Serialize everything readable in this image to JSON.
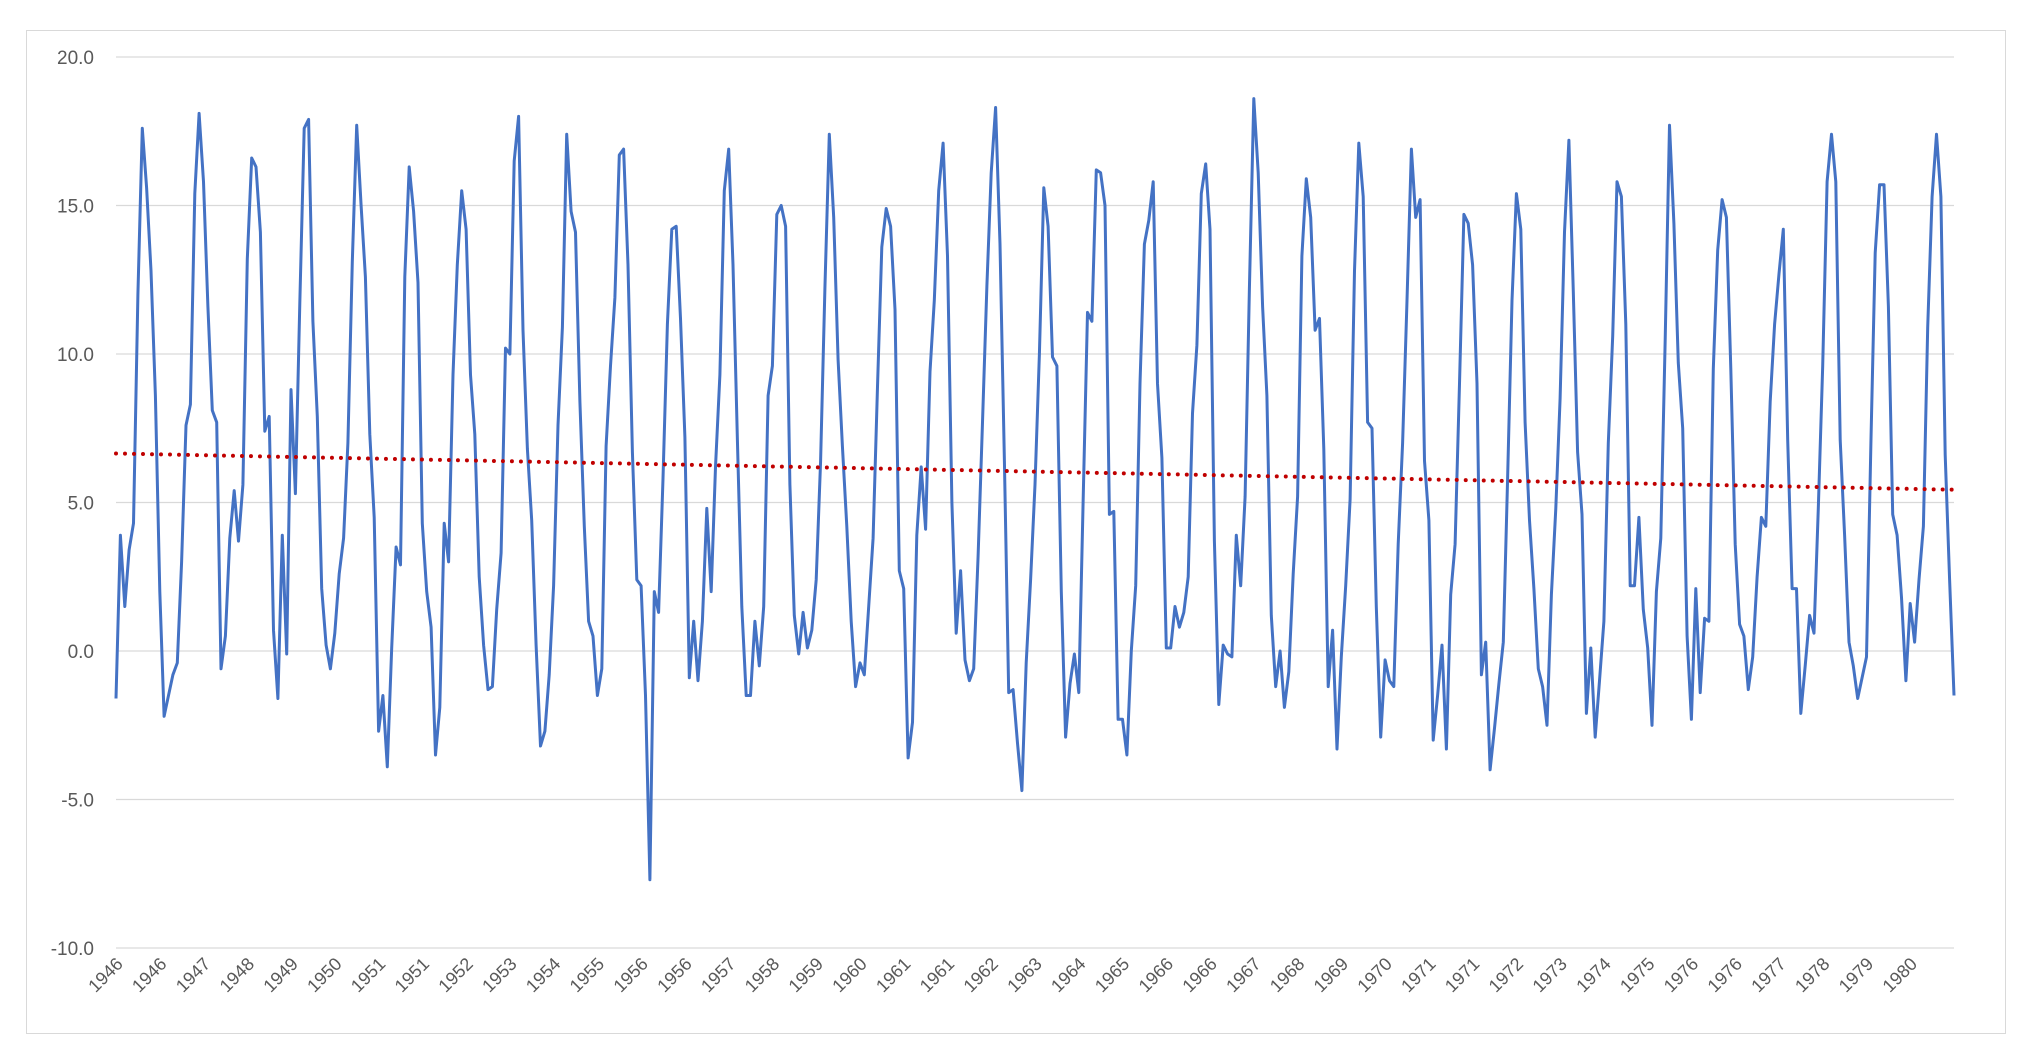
{
  "chart_data": {
    "type": "line",
    "title": "",
    "xlabel": "",
    "ylabel": "",
    "ylim": [
      -10,
      20
    ],
    "yticks": [
      "20.0",
      "15.0",
      "10.0",
      "5.0",
      "0.0",
      "-5.0",
      "-10.0"
    ],
    "xtick_labels": [
      "1946",
      "1946",
      "1947",
      "1948",
      "1949",
      "1950",
      "1951",
      "1951",
      "1952",
      "1953",
      "1954",
      "1955",
      "1956",
      "1956",
      "1957",
      "1958",
      "1959",
      "1960",
      "1961",
      "1961",
      "1962",
      "1963",
      "1964",
      "1965",
      "1966",
      "1966",
      "1967",
      "1968",
      "1969",
      "1970",
      "1971",
      "1971",
      "1972",
      "1973",
      "1974",
      "1975",
      "1976",
      "1976",
      "1977",
      "1978",
      "1979",
      "1980"
    ],
    "grid": "horizontal",
    "legend": "none",
    "series": [
      {
        "color": "#4472C4",
        "style": "solid",
        "values": [
          -1.6,
          3.9,
          1.5,
          3.4,
          4.3,
          12.0,
          17.6,
          15.6,
          12.8,
          8.6,
          2.0,
          -2.2,
          -1.5,
          -0.8,
          -0.4,
          3.0,
          7.6,
          8.3,
          15.4,
          18.1,
          15.8,
          11.6,
          8.1,
          7.7,
          -0.6,
          0.5,
          3.8,
          5.4,
          3.7,
          5.6,
          13.2,
          16.6,
          16.3,
          14.1,
          7.4,
          7.9,
          0.7,
          -1.6,
          3.9,
          -0.1,
          8.8,
          5.3,
          11.7,
          17.6,
          17.9,
          11.1,
          7.9,
          2.1,
          0.2,
          -0.6,
          0.6,
          2.6,
          3.8,
          7.0,
          13.1,
          17.7,
          15.0,
          12.6,
          7.3,
          4.5,
          -2.7,
          -1.5,
          -3.9,
          0.1,
          3.5,
          2.9,
          12.6,
          16.3,
          14.8,
          12.4,
          4.3,
          2.0,
          0.8,
          -3.5,
          -1.9,
          4.3,
          3.0,
          9.3,
          13.0,
          15.5,
          14.2,
          9.3,
          7.3,
          2.5,
          0.2,
          -1.3,
          -1.2,
          1.4,
          3.3,
          10.2,
          10.0,
          16.5,
          18.0,
          10.8,
          6.8,
          4.4,
          0.2,
          -3.2,
          -2.7,
          -0.8,
          2.2,
          7.6,
          10.9,
          17.4,
          14.8,
          14.1,
          8.4,
          4.2,
          1.0,
          0.5,
          -1.5,
          -0.6,
          6.9,
          9.6,
          11.9,
          16.7,
          16.9,
          13.0,
          6.7,
          2.4,
          2.2,
          -1.5,
          -7.7,
          2.0,
          1.3,
          5.8,
          11.0,
          14.2,
          14.3,
          11.2,
          7.2,
          -0.9,
          1.0,
          -1.0,
          1.0,
          4.8,
          2.0,
          6.2,
          9.3,
          15.5,
          16.9,
          13.0,
          7.1,
          1.5,
          -1.5,
          -1.5,
          1.0,
          -0.5,
          1.5,
          8.6,
          9.6,
          14.7,
          15.0,
          14.3,
          5.6,
          1.2,
          -0.1,
          1.3,
          0.1,
          0.7,
          2.4,
          6.4,
          12.2,
          17.4,
          14.6,
          9.8,
          6.9,
          4.2,
          1.0,
          -1.2,
          -0.4,
          -0.8,
          1.5,
          3.8,
          8.9,
          13.6,
          14.9,
          14.3,
          11.5,
          2.7,
          2.1,
          -3.6,
          -2.4,
          3.9,
          6.2,
          4.1,
          9.4,
          11.8,
          15.5,
          17.1,
          13.3,
          5.0,
          0.6,
          2.7,
          -0.3,
          -1.0,
          -0.6,
          3.2,
          7.7,
          12.3,
          16.1,
          18.3,
          13.7,
          6.4,
          -1.4,
          -1.3,
          -3.1,
          -4.7,
          -0.4,
          2.4,
          5.6,
          10.0,
          15.6,
          14.3,
          9.9,
          9.6,
          2.0,
          -2.9,
          -1.1,
          -0.1,
          -1.4,
          5.0,
          11.4,
          11.1,
          16.2,
          16.1,
          15.0,
          4.6,
          4.7,
          -2.3,
          -2.3,
          -3.5,
          0.0,
          2.2,
          9.0,
          13.7,
          14.5,
          15.8,
          9.0,
          6.5,
          0.1,
          0.1,
          1.5,
          0.8,
          1.3,
          2.5,
          8.0,
          10.3,
          15.4,
          16.4,
          14.2,
          3.7,
          -1.8,
          0.2,
          -0.1,
          -0.2,
          3.9,
          2.2,
          5.2,
          12.2,
          18.6,
          16.1,
          11.6,
          8.6,
          1.2,
          -1.2,
          0.0,
          -1.9,
          -0.7,
          2.6,
          5.2,
          13.3,
          15.9,
          14.6,
          10.8,
          11.2,
          6.8,
          -1.2,
          0.7,
          -3.3,
          -0.2,
          2.2,
          5.1,
          12.8,
          17.1,
          15.3,
          7.7,
          7.5,
          1.5,
          -2.9,
          -0.3,
          -1.0,
          -1.2,
          3.6,
          7.0,
          11.8,
          16.9,
          14.6,
          15.2,
          6.4,
          4.4,
          -3.0,
          -1.5,
          0.2,
          -3.3,
          1.9,
          3.6,
          9.0,
          14.7,
          14.4,
          13.0,
          9.0,
          -0.8,
          0.3,
          -4.0,
          -2.6,
          -1.1,
          0.3,
          5.8,
          11.8,
          15.4,
          14.2,
          7.7,
          4.4,
          2.1,
          -0.6,
          -1.2,
          -2.5,
          1.9,
          4.8,
          8.5,
          14.1,
          17.2,
          12.1,
          6.7,
          4.6,
          -2.1,
          0.1,
          -2.9,
          -1.0,
          1.0,
          7.0,
          10.6,
          15.8,
          15.3,
          11.0,
          2.2,
          2.2,
          4.5,
          1.4,
          0.1,
          -2.5,
          2.0,
          3.8,
          10.5,
          17.7,
          14.4,
          9.7,
          7.5,
          0.5,
          -2.3,
          2.1,
          -1.4,
          1.1,
          1.0,
          9.5,
          13.5,
          15.2,
          14.6,
          9.5,
          3.6,
          0.9,
          0.5,
          -1.3,
          -0.2,
          2.5,
          4.5,
          4.2,
          8.4,
          11.0,
          12.7,
          14.2,
          7.1,
          2.1,
          2.1,
          -2.1,
          -0.5,
          1.2,
          0.6,
          4.8,
          9.6,
          15.8,
          17.4,
          15.8,
          7.1,
          3.9,
          0.3,
          -0.5,
          -1.6,
          -0.9,
          -0.2,
          7.0,
          13.4,
          15.7,
          15.7,
          11.6,
          4.6,
          3.9,
          1.8,
          -1.0,
          1.6,
          0.3,
          2.4,
          4.2,
          10.9,
          15.3,
          17.4,
          15.3,
          6.6,
          2.4,
          -1.5
        ]
      },
      {
        "color": "#C00000",
        "style": "dotted",
        "trendline": "linear",
        "start": 6.65,
        "end": 5.43
      }
    ]
  }
}
